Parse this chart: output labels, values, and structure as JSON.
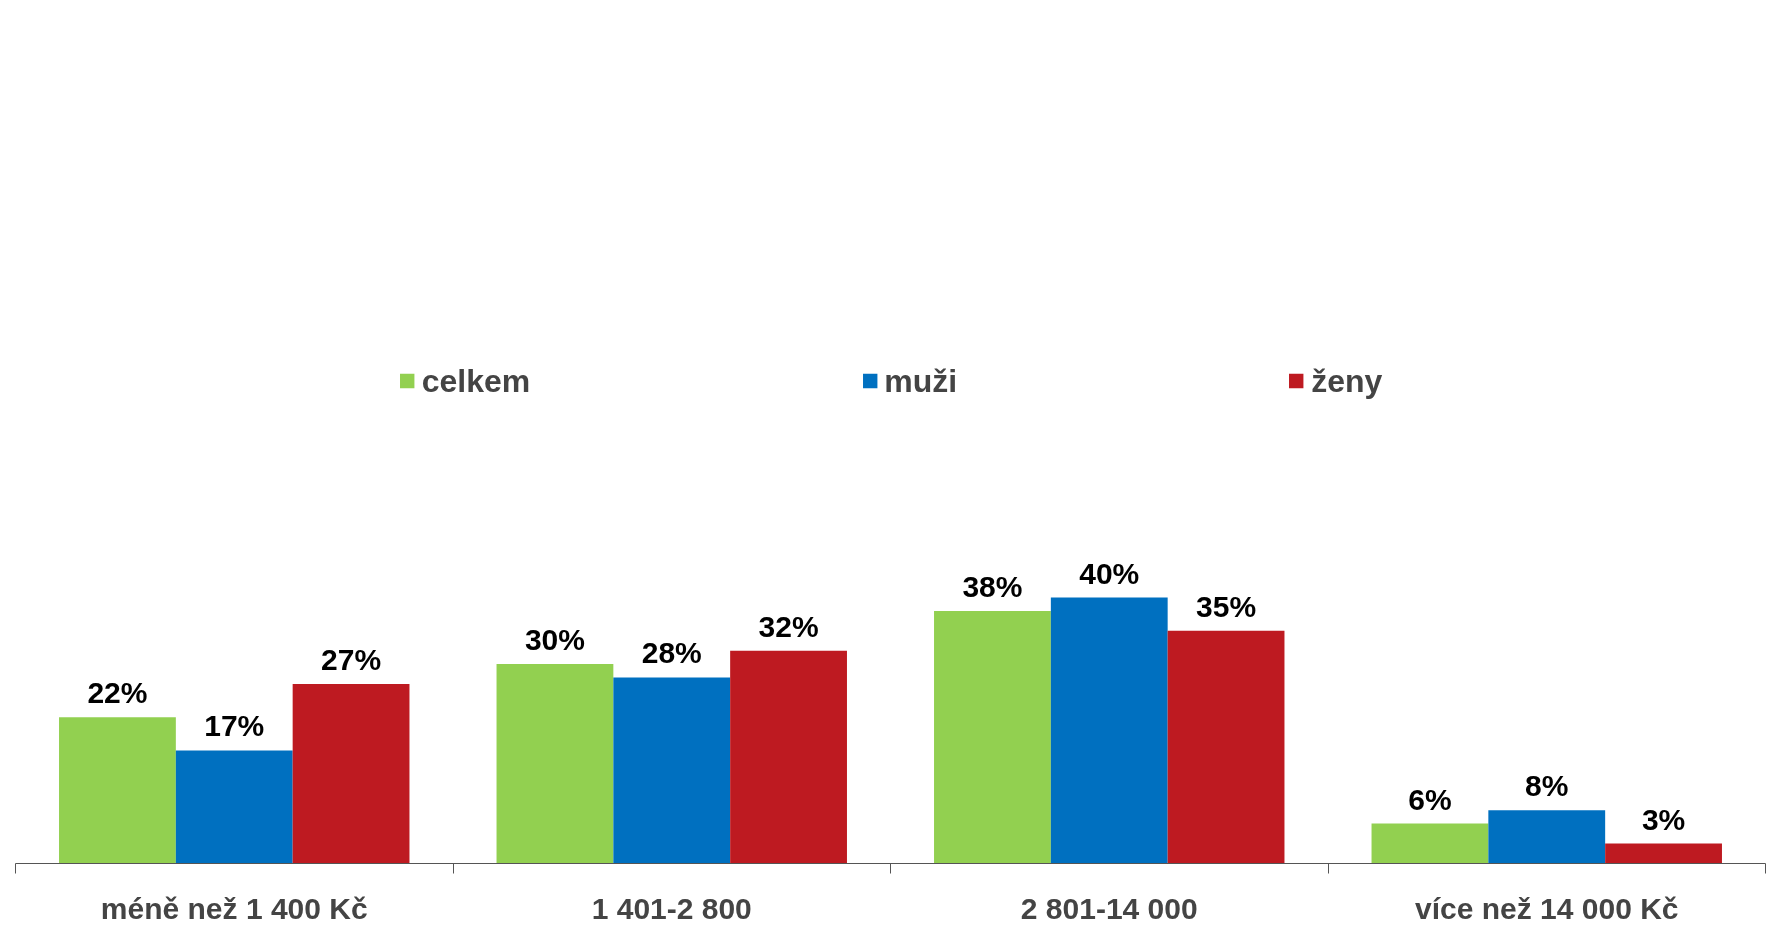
{
  "chart_data": {
    "type": "bar",
    "categories": [
      "méně než 1 400 Kč",
      "1 401-2 800",
      "2 801-14 000",
      "více než 14 000 Kč"
    ],
    "series": [
      {
        "name": "celkem",
        "color": "#92d050",
        "values": [
          22,
          30,
          38,
          6
        ],
        "value_labels": [
          "22%",
          "30%",
          "38%",
          "6%"
        ]
      },
      {
        "name": "muži",
        "color": "#0070c0",
        "values": [
          17,
          28,
          40,
          8
        ],
        "value_labels": [
          "17%",
          "28%",
          "40%",
          "8%"
        ]
      },
      {
        "name": "ženy",
        "color": "#be1a21",
        "values": [
          27,
          32,
          35,
          3
        ],
        "value_labels": [
          "27%",
          "32%",
          "35%",
          "3%"
        ]
      }
    ],
    "legend": "top",
    "grid": false
  }
}
